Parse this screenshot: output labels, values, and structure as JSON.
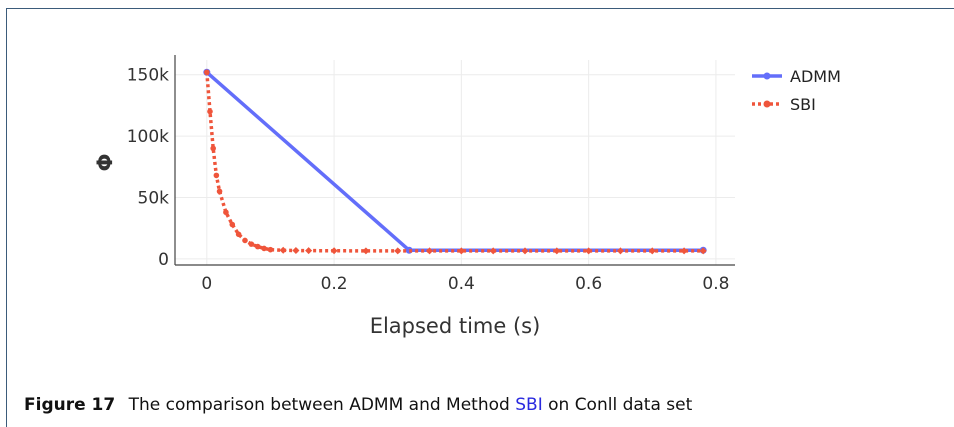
{
  "caption": {
    "figure_label": "Figure 17",
    "text_before": "The comparison between ADMM and Method",
    "highlight": "SBI",
    "text_after": "on Conll data set"
  },
  "chart_data": {
    "type": "line",
    "xlabel": "Elapsed time (s)",
    "ylabel": "Φ",
    "xlim": [
      -0.05,
      0.83
    ],
    "ylim": [
      -5000,
      162000
    ],
    "x_ticks": [
      0,
      0.2,
      0.4,
      0.6,
      0.8
    ],
    "x_tick_labels": [
      "0",
      "0.2",
      "0.4",
      "0.6",
      "0.8"
    ],
    "y_ticks": [
      0,
      50000,
      100000,
      150000
    ],
    "y_tick_labels": [
      "0",
      "50k",
      "100k",
      "150k"
    ],
    "grid": true,
    "legend_position": "top-right",
    "series": [
      {
        "name": "ADMM",
        "color": "#636efa",
        "style": "solid",
        "x": [
          0,
          0.318,
          0.78
        ],
        "y": [
          152000,
          7000,
          7000
        ]
      },
      {
        "name": "SBI",
        "color": "#ef553b",
        "style": "dotted",
        "x": [
          0,
          0.005,
          0.01,
          0.015,
          0.02,
          0.03,
          0.04,
          0.05,
          0.06,
          0.07,
          0.08,
          0.09,
          0.1,
          0.12,
          0.14,
          0.16,
          0.2,
          0.25,
          0.3,
          0.35,
          0.4,
          0.45,
          0.5,
          0.55,
          0.6,
          0.65,
          0.7,
          0.75,
          0.78
        ],
        "y": [
          152000,
          120000,
          90000,
          68000,
          55000,
          38000,
          28000,
          20000,
          15000,
          12000,
          10000,
          8500,
          7500,
          7000,
          6800,
          6700,
          6600,
          6500,
          6500,
          6500,
          6500,
          6500,
          6500,
          6500,
          6500,
          6500,
          6500,
          6500,
          6500
        ]
      }
    ]
  }
}
